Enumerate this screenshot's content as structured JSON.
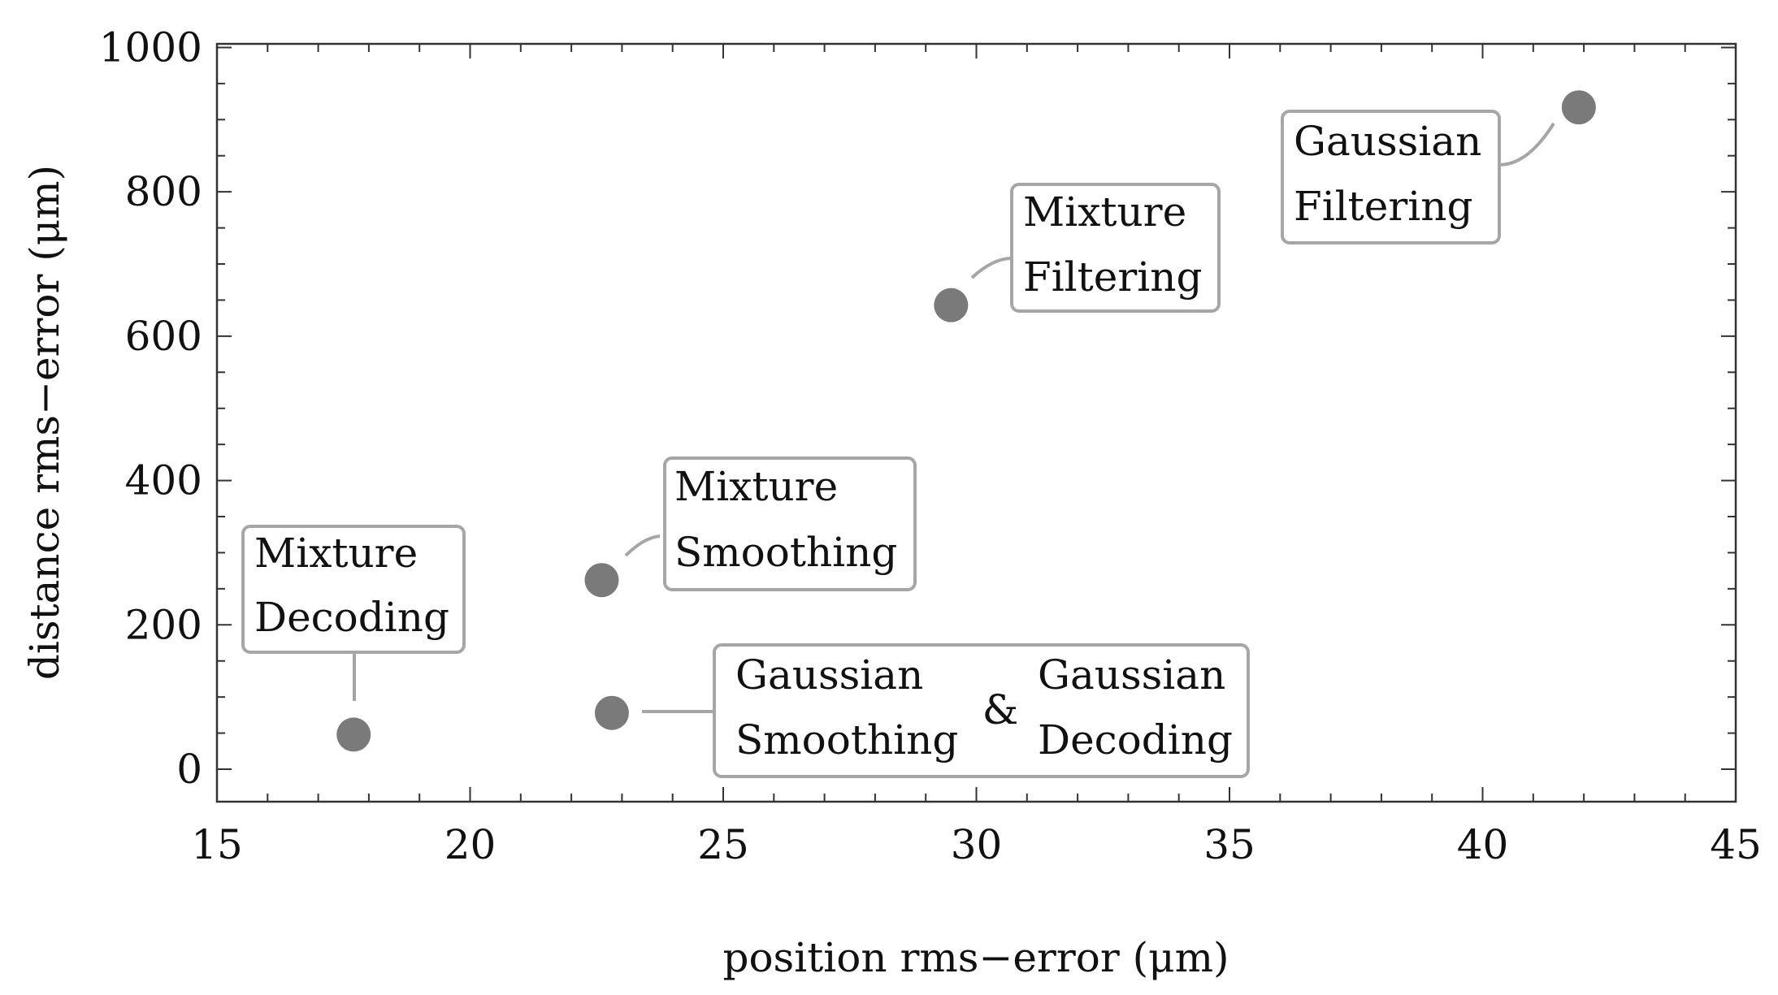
{
  "chart_data": {
    "type": "scatter",
    "title": "",
    "xlabel": "position rms−error (μm)",
    "ylabel": "distance rms−error (μm)",
    "xlim": [
      15,
      45
    ],
    "ylim": [
      -45,
      1005
    ],
    "xticks": [
      15,
      20,
      25,
      30,
      35,
      40,
      45
    ],
    "yticks": [
      0,
      200,
      400,
      600,
      800,
      1000
    ],
    "grid": false,
    "legend": "none",
    "marker_color": "#7a7a7a",
    "box_color": "#a6a6a6",
    "points": [
      {
        "x": 17.7,
        "y": 48,
        "label_lines": [
          "Mixture",
          "Decoding"
        ]
      },
      {
        "x": 22.6,
        "y": 262,
        "label_lines": [
          "Mixture",
          "Smoothing"
        ]
      },
      {
        "x": 22.8,
        "y": 78,
        "label_lines": [
          "Gaussian",
          "Smoothing"
        ],
        "joiner": "&",
        "label_lines_2": [
          "Gaussian",
          "Decoding"
        ]
      },
      {
        "x": 29.5,
        "y": 643,
        "label_lines": [
          "Mixture",
          "Filtering"
        ]
      },
      {
        "x": 41.9,
        "y": 917,
        "label_lines": [
          "Gaussian",
          "Filtering"
        ]
      }
    ]
  }
}
